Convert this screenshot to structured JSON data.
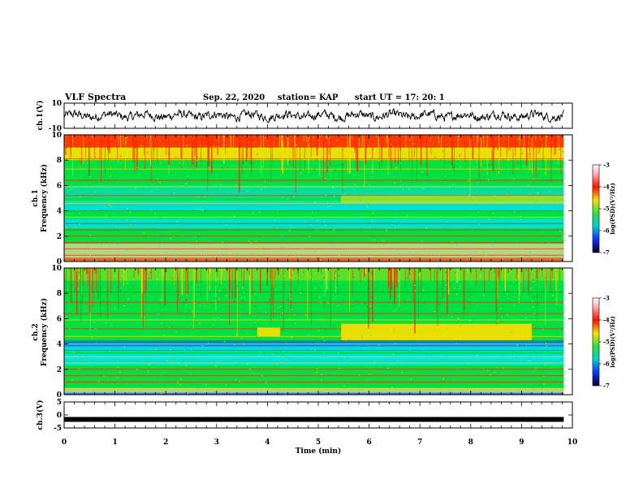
{
  "header": {
    "title": "VLF Spectra",
    "date": "Sep. 22, 2020",
    "station": "station= KAP",
    "start": "start UT = 17: 20: 1"
  },
  "chart_data": [
    {
      "type": "line",
      "panel": "ch1-waveform",
      "ylabel": "ch.1(V)",
      "ylim": [
        -10,
        10
      ],
      "yticks": [
        "10",
        "-10"
      ],
      "xlim": [
        0,
        10
      ],
      "note_series": "noisy waveform oscillating roughly between -4 and +4 V over 0 to 9.8 min"
    },
    {
      "type": "heatmap",
      "panel": "ch1-spectrogram",
      "ylabel": "ch.1\nFrequency (kHz)",
      "ylabel_line1": "ch.1",
      "ylabel_line2": "Frequency (kHz)",
      "ylim": [
        0,
        10
      ],
      "yticks": [
        "0",
        "2",
        "4",
        "6",
        "8",
        "10"
      ],
      "xlim": [
        0,
        10
      ],
      "colorbar": {
        "label": "log(PSD)(V²/Hz)",
        "range": [
          -7,
          -3
        ],
        "ticks": [
          "-3",
          "-4",
          "-5",
          "-6",
          "-7"
        ]
      }
    },
    {
      "type": "heatmap",
      "panel": "ch2-spectrogram",
      "ylabel_line1": "ch.2",
      "ylabel_line2": "Frequency (kHz)",
      "ylim": [
        0,
        10
      ],
      "yticks": [
        "0",
        "2",
        "4",
        "6",
        "8",
        "10"
      ],
      "xlim": [
        0,
        10
      ],
      "colorbar": {
        "label": "log(PSD)(V²/Hz)",
        "range": [
          -7,
          -3
        ],
        "ticks": [
          "-3",
          "-4",
          "-5",
          "-6",
          "-7"
        ]
      }
    },
    {
      "type": "line",
      "panel": "ch3-waveform",
      "ylabel": "ch.3(V)",
      "ylim": [
        -5,
        5
      ],
      "yticks": [
        "5",
        "0",
        "-5"
      ],
      "xlim": [
        0,
        10
      ],
      "level": -1.7
    }
  ],
  "xaxis": {
    "label": "Time (min)",
    "ticks": [
      "0",
      "1",
      "2",
      "3",
      "4",
      "5",
      "6",
      "7",
      "8",
      "9",
      "10"
    ]
  },
  "colors": {
    "red": "#ff2000",
    "yellow": "#ffe000",
    "green": "#00e040",
    "cyan": "#00e0e0",
    "blue": "#2040ff"
  }
}
